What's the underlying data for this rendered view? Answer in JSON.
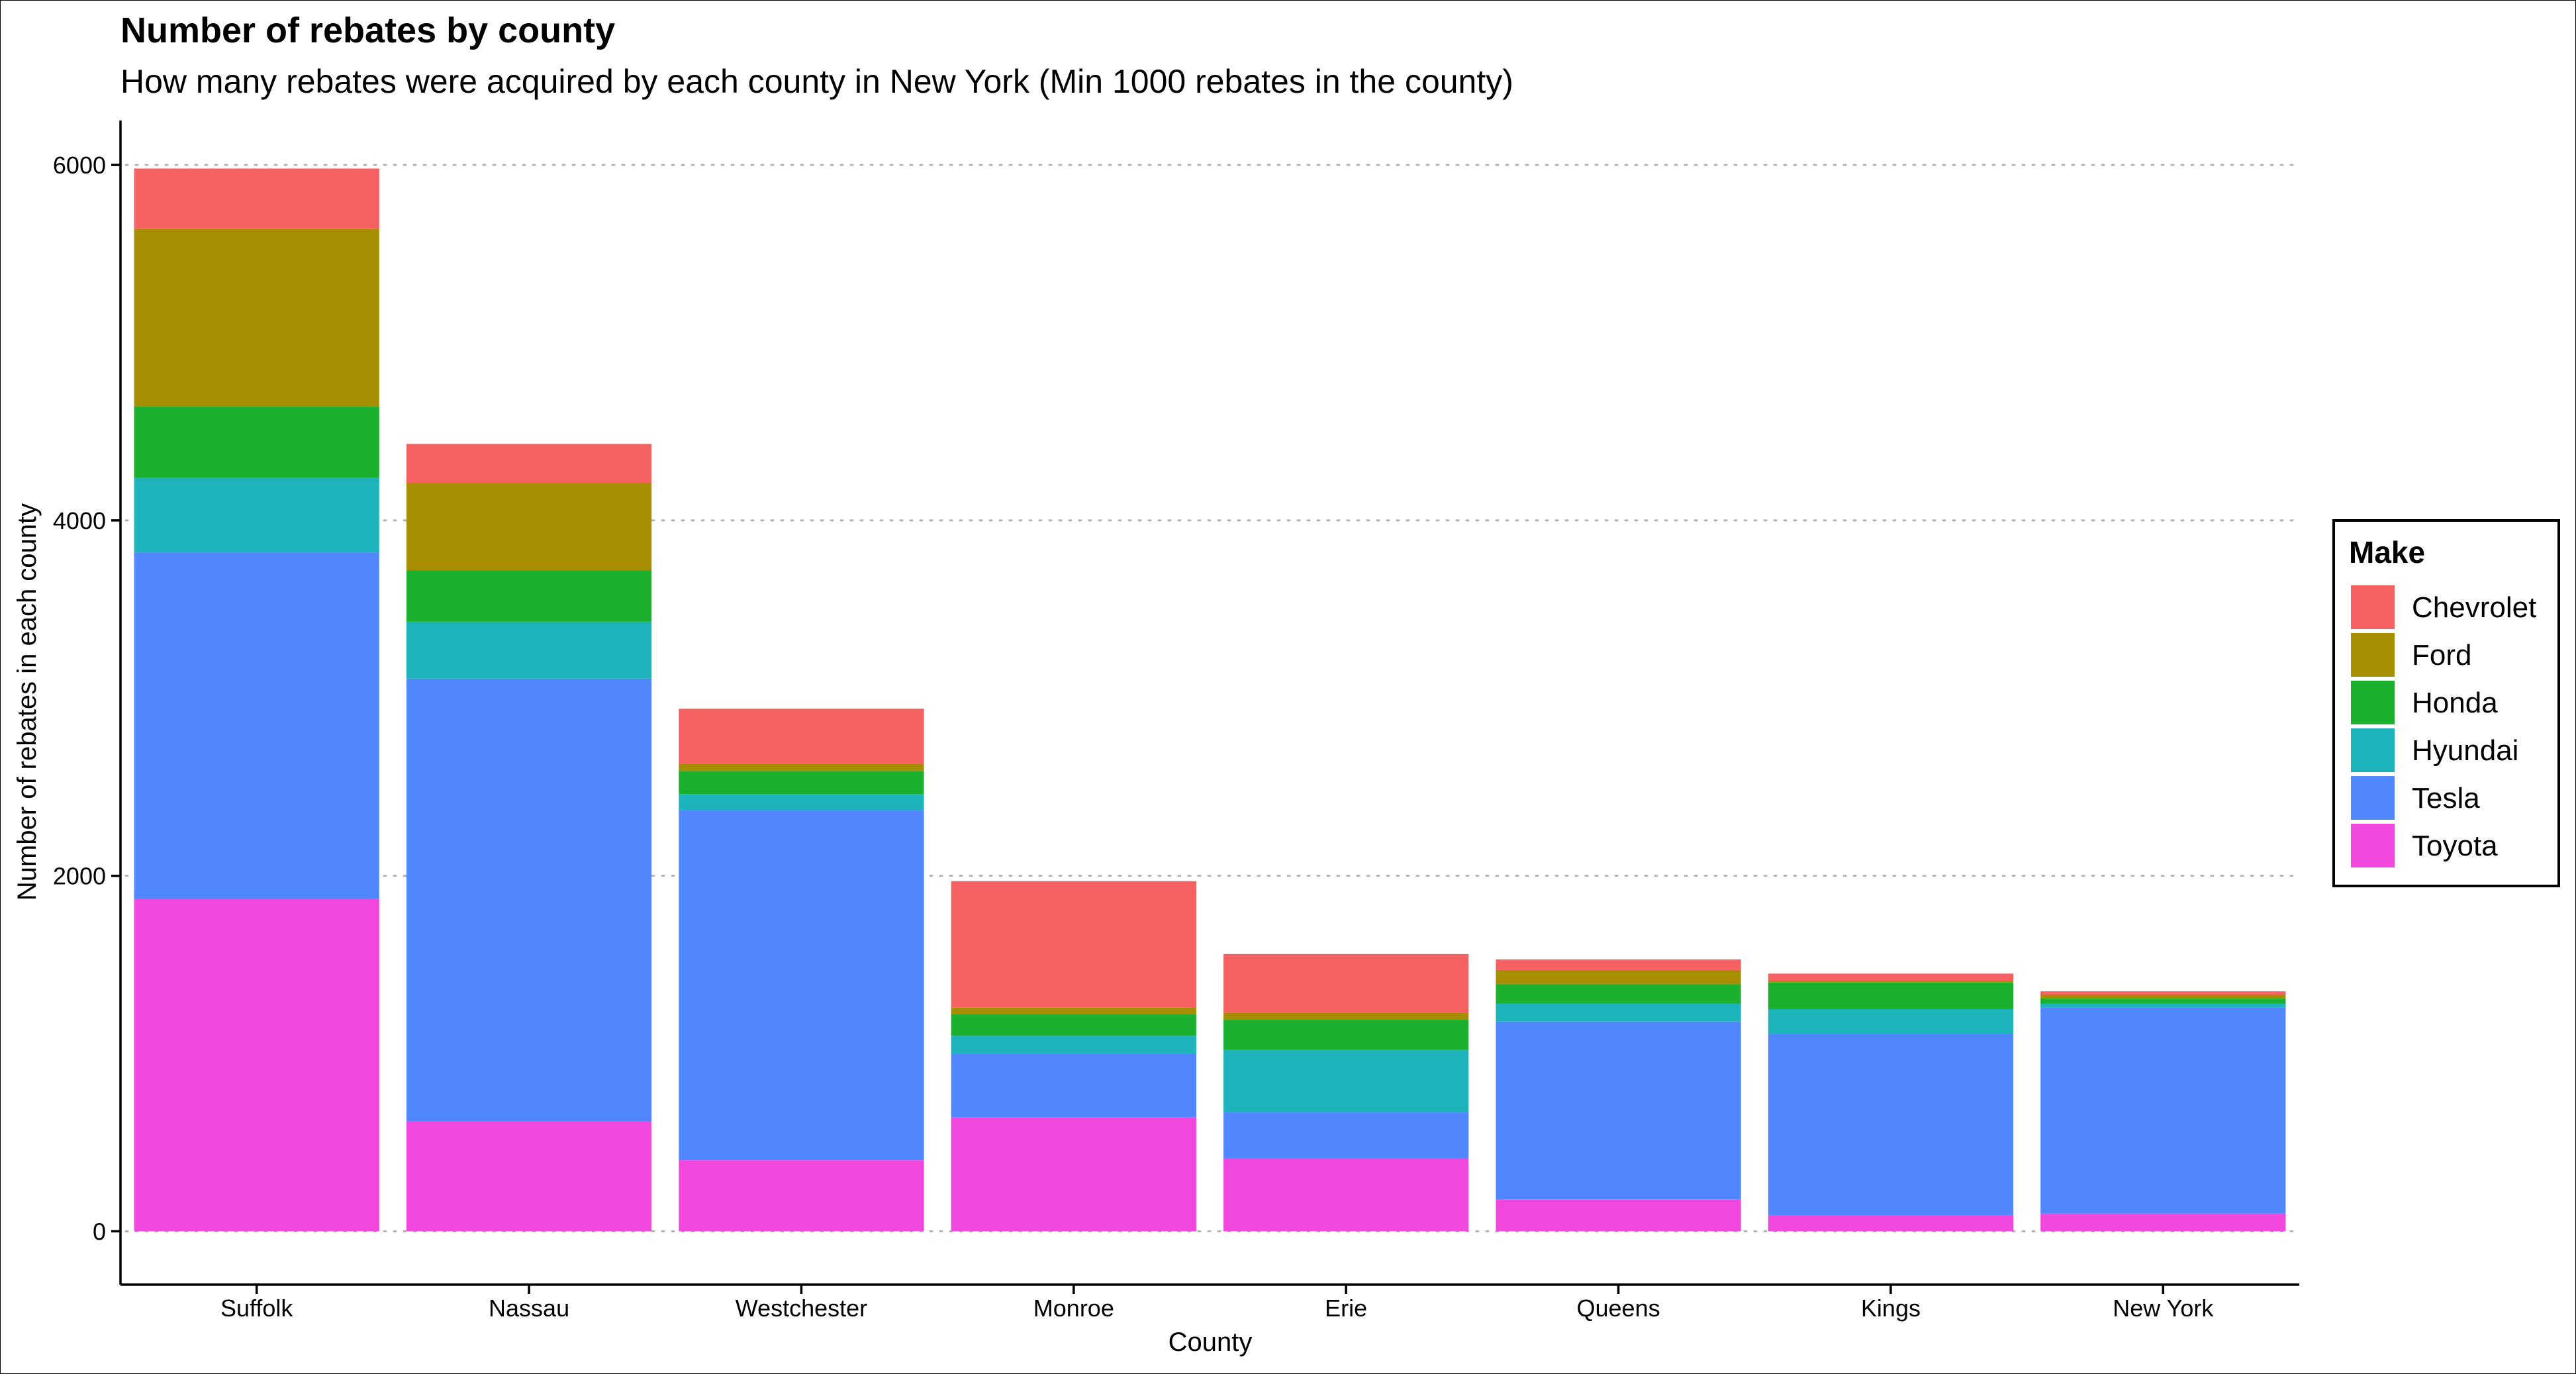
{
  "chart_data": {
    "type": "bar",
    "stacked": true,
    "title": "Number of rebates by county",
    "subtitle": "How many rebates were acquired by each county in New York (Min 1000 rebates in the county)",
    "xlabel": "County",
    "ylabel": "Number of rebates in each county",
    "ylim": [
      -300,
      6250
    ],
    "yticks": [
      0,
      2000,
      4000,
      6000
    ],
    "grid": "horizontal dotted",
    "legend": {
      "title": "Make",
      "placement": "right"
    },
    "categories": [
      "Suffolk",
      "Nassau",
      "Westchester",
      "Monroe",
      "Erie",
      "Queens",
      "Kings",
      "New York"
    ],
    "series": [
      {
        "name": "Toyota",
        "color": "#F147DC",
        "values": [
          1870,
          620,
          400,
          640,
          410,
          180,
          90,
          100
        ]
      },
      {
        "name": "Tesla",
        "color": "#5087FE",
        "values": [
          1950,
          2490,
          1970,
          360,
          260,
          1000,
          1020,
          1160
        ]
      },
      {
        "name": "Hyundai",
        "color": "#1DB3BA",
        "values": [
          420,
          320,
          90,
          100,
          350,
          100,
          140,
          20
        ]
      },
      {
        "name": "Honda",
        "color": "#1BB12E",
        "values": [
          400,
          290,
          130,
          120,
          170,
          110,
          150,
          30
        ]
      },
      {
        "name": "Ford",
        "color": "#A68E00",
        "values": [
          1000,
          490,
          40,
          40,
          40,
          80,
          10,
          20
        ]
      },
      {
        "name": "Chevrolet",
        "color": "#F46160",
        "values": [
          340,
          220,
          310,
          710,
          330,
          60,
          40,
          20
        ]
      }
    ],
    "legend_order": [
      "Chevrolet",
      "Ford",
      "Honda",
      "Hyundai",
      "Tesla",
      "Toyota"
    ]
  }
}
